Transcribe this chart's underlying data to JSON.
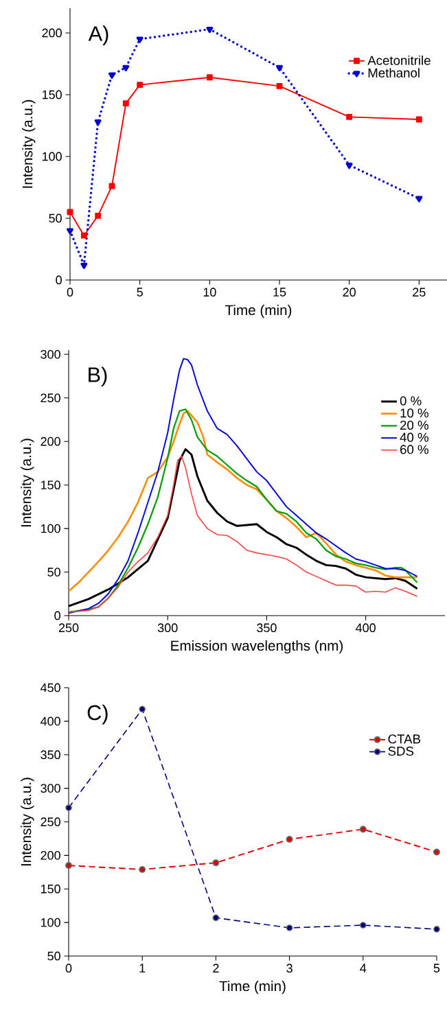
{
  "chart_data": [
    {
      "type": "line",
      "title": "A)",
      "xlabel": "Time (min)",
      "ylabel": "Intensity (a.u.)",
      "xlim": [
        0,
        27
      ],
      "ylim": [
        0,
        220
      ],
      "xticks": [
        0,
        5,
        10,
        15,
        20,
        25
      ],
      "yticks": [
        0,
        50,
        100,
        150,
        200
      ],
      "legend": "top right",
      "x": [
        0,
        1,
        2,
        3,
        4,
        5,
        10,
        15,
        20,
        25
      ],
      "series": [
        {
          "name": "Acetonitrile",
          "color": "#ff0000",
          "marker": "square",
          "line_style": "solid",
          "values": [
            55,
            36,
            52,
            76,
            143,
            158,
            164,
            157,
            132,
            130
          ]
        },
        {
          "name": "Methanol",
          "color": "#0000cc",
          "marker": "triangle",
          "line_style": "dotted",
          "values": [
            40,
            12,
            128,
            166,
            172,
            195,
            203,
            172,
            93,
            66
          ]
        }
      ]
    },
    {
      "type": "line",
      "title": "B)",
      "xlabel": "Emission wavelengths (nm)",
      "ylabel": "Intensity (a.u.)",
      "xlim": [
        250,
        440
      ],
      "ylim": [
        0,
        305
      ],
      "xticks": [
        250,
        300,
        350,
        400
      ],
      "yticks": [
        0,
        50,
        100,
        150,
        200,
        250,
        300
      ],
      "legend": "top right",
      "series": [
        {
          "name": "0 %",
          "color": "#000000",
          "x": [
            250,
            260,
            270,
            280,
            290,
            300,
            303,
            306,
            309,
            312,
            315,
            320,
            325,
            330,
            335,
            340,
            345,
            350,
            355,
            360,
            365,
            370,
            375,
            380,
            385,
            390,
            395,
            400,
            405,
            410,
            415,
            420,
            426
          ],
          "values": [
            11,
            19,
            30,
            44,
            63,
            112,
            145,
            178,
            191,
            185,
            160,
            132,
            118,
            108,
            103,
            104,
            105,
            96,
            90,
            82,
            78,
            70,
            63,
            58,
            57,
            54,
            47,
            44,
            43,
            42,
            43,
            40,
            31
          ]
        },
        {
          "name": "10 %",
          "color": "#ff8c00",
          "x": [
            250,
            255,
            260,
            265,
            270,
            275,
            280,
            285,
            290,
            295,
            300,
            303,
            306,
            308,
            310,
            312,
            315,
            318,
            320,
            325,
            330,
            335,
            340,
            345,
            350,
            355,
            360,
            365,
            370,
            375,
            380,
            385,
            390,
            395,
            400,
            405,
            410,
            415,
            420,
            426
          ],
          "values": [
            28,
            38,
            50,
            62,
            75,
            90,
            108,
            130,
            158,
            165,
            182,
            200,
            220,
            232,
            235,
            230,
            222,
            205,
            185,
            176,
            168,
            158,
            150,
            145,
            133,
            120,
            112,
            102,
            90,
            95,
            83,
            70,
            62,
            58,
            55,
            52,
            46,
            44,
            44,
            44
          ]
        },
        {
          "name": "20 %",
          "color": "#00a000",
          "x": [
            250,
            260,
            265,
            270,
            275,
            280,
            285,
            290,
            295,
            300,
            303,
            306,
            309,
            312,
            315,
            320,
            325,
            330,
            335,
            340,
            345,
            350,
            355,
            360,
            365,
            370,
            375,
            380,
            385,
            390,
            395,
            400,
            405,
            410,
            415,
            418,
            420,
            426
          ],
          "values": [
            4,
            7,
            10,
            20,
            35,
            55,
            78,
            105,
            136,
            181,
            215,
            235,
            237,
            225,
            205,
            190,
            183,
            173,
            163,
            155,
            148,
            133,
            120,
            117,
            108,
            95,
            88,
            75,
            68,
            65,
            60,
            58,
            55,
            53,
            55,
            55,
            52,
            38
          ]
        },
        {
          "name": "40 %",
          "color": "#0000e0",
          "x": [
            250,
            260,
            265,
            270,
            275,
            280,
            285,
            290,
            295,
            300,
            303,
            306,
            308,
            310,
            312,
            315,
            320,
            325,
            330,
            335,
            340,
            345,
            350,
            355,
            360,
            365,
            370,
            375,
            380,
            385,
            390,
            395,
            400,
            405,
            410,
            415,
            420,
            426
          ],
          "values": [
            3,
            8,
            14,
            25,
            42,
            63,
            95,
            130,
            165,
            210,
            248,
            282,
            295,
            294,
            288,
            265,
            235,
            215,
            208,
            195,
            180,
            165,
            155,
            140,
            125,
            115,
            105,
            95,
            88,
            80,
            72,
            65,
            62,
            58,
            54,
            54,
            52,
            45
          ]
        },
        {
          "name": "60 %",
          "color": "#ff4040",
          "x": [
            250,
            260,
            265,
            270,
            275,
            280,
            285,
            290,
            295,
            300,
            303,
            305,
            307,
            309,
            312,
            315,
            320,
            325,
            330,
            335,
            340,
            345,
            350,
            355,
            360,
            365,
            370,
            375,
            380,
            385,
            390,
            395,
            400,
            405,
            410,
            415,
            420,
            426
          ],
          "values": [
            4,
            6,
            10,
            20,
            33,
            50,
            62,
            72,
            90,
            115,
            150,
            178,
            183,
            170,
            140,
            115,
            100,
            93,
            92,
            85,
            75,
            72,
            70,
            68,
            65,
            58,
            50,
            45,
            40,
            35,
            35,
            34,
            27,
            28,
            27,
            32,
            28,
            22
          ]
        }
      ]
    },
    {
      "type": "line",
      "title": "C)",
      "xlabel": "Time (min)",
      "ylabel": "Intensity (a.u.)",
      "xlim": [
        0,
        5
      ],
      "ylim": [
        50,
        450
      ],
      "xticks": [
        0,
        1,
        2,
        3,
        4,
        5
      ],
      "yticks": [
        50,
        100,
        150,
        200,
        250,
        300,
        350,
        400,
        450
      ],
      "legend": "top right",
      "x": [
        0,
        1,
        2,
        3,
        4,
        5
      ],
      "series": [
        {
          "name": "CTAB",
          "color": "#e00000",
          "marker": "circle",
          "line_style": "dashed",
          "values": [
            185,
            179,
            189,
            224,
            239,
            205
          ]
        },
        {
          "name": "SDS",
          "color": "#000080",
          "marker": "circle",
          "line_style": "dashed",
          "values": [
            271,
            418,
            107,
            92,
            96,
            90
          ]
        }
      ]
    }
  ]
}
